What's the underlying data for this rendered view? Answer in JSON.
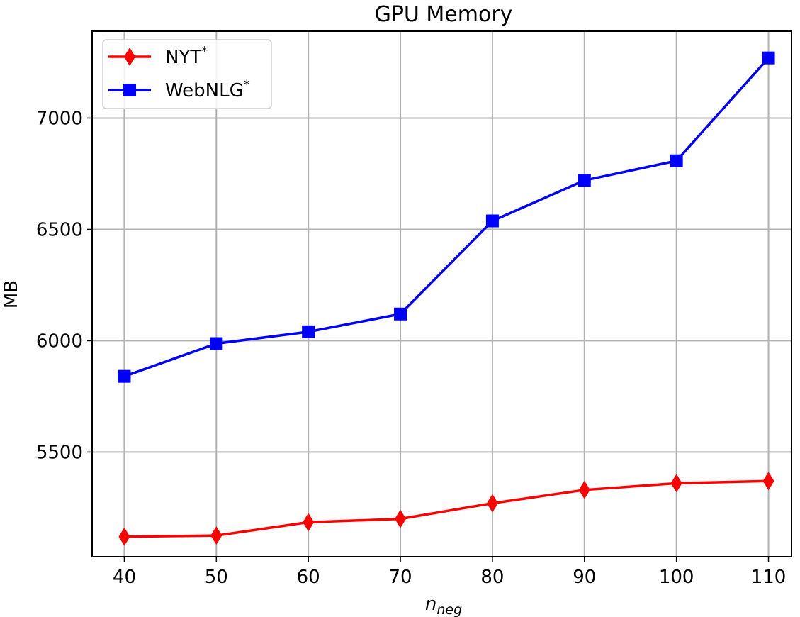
{
  "chart_data": {
    "type": "line",
    "title": "GPU Memory",
    "xlabel": {
      "main": "n",
      "sub": "neg"
    },
    "ylabel": "MB",
    "x": [
      40,
      50,
      60,
      70,
      80,
      90,
      100,
      110
    ],
    "xlim": [
      36.5,
      112.5
    ],
    "ylim": [
      5030,
      7390
    ],
    "yticks": [
      5500,
      6000,
      6500,
      7000
    ],
    "grid": true,
    "legend_position": "top-left",
    "series": [
      {
        "name": "NYT",
        "name_sup": "*",
        "color": "#ff0000",
        "marker": "diamond",
        "values": [
          5120,
          5125,
          5185,
          5200,
          5270,
          5330,
          5360,
          5370
        ]
      },
      {
        "name": "WebNLG",
        "name_sup": "*",
        "color": "#0000ff",
        "marker": "square",
        "values": [
          5840,
          5987,
          6040,
          6120,
          6538,
          6720,
          6808,
          7270
        ]
      }
    ]
  }
}
